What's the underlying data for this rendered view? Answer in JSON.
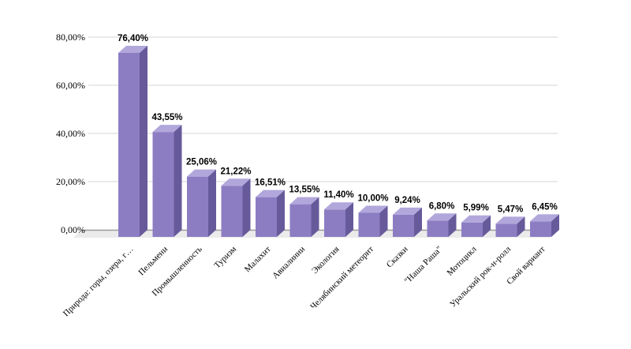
{
  "chart": {
    "title": "",
    "background": "#ffffff"
  },
  "chart_data": {
    "type": "bar",
    "style": "3d-column",
    "title": "",
    "xlabel": "",
    "ylabel": "",
    "ylim": [
      0,
      80
    ],
    "grid": true,
    "legend": "none",
    "decimal_separator": ",",
    "categories": [
      "Природа: горы, озера, г…",
      "Пельмени",
      "Промышленность",
      "Туризм",
      "Малахит",
      "Авиалинии",
      "Экология",
      "Челябинский метеорит",
      "Сказки",
      "\"Наша Раша\"",
      "Мотоцикл",
      "Уральский рок-н-ролл",
      "Свой вариант"
    ],
    "values": [
      76.4,
      43.55,
      25.06,
      21.22,
      16.51,
      13.55,
      11.4,
      10.0,
      9.24,
      6.8,
      5.99,
      5.47,
      6.45
    ],
    "value_labels": [
      "76,40%",
      "43,55%",
      "25,06%",
      "21,22%",
      "16,51%",
      "13,55%",
      "11,40%",
      "10,00%",
      "9,24%",
      "6,80%",
      "5,99%",
      "5,47%",
      "6,45%"
    ],
    "y_ticks": [
      {
        "value": 80,
        "label": "80,00%"
      },
      {
        "value": 60,
        "label": "60,00%"
      },
      {
        "value": 40,
        "label": "40,00%"
      },
      {
        "value": 20,
        "label": "20,00%"
      },
      {
        "value": 0,
        "label": "0,00%"
      }
    ],
    "colors": {
      "bar_front": "#8c7dc3",
      "bar_top": "#b2a7db",
      "bar_side": "#675a9b",
      "gridline": "#d6d6d6",
      "floor": "#ebebeb",
      "floor_edge": "#9b9b9b",
      "text": "#000000"
    }
  }
}
